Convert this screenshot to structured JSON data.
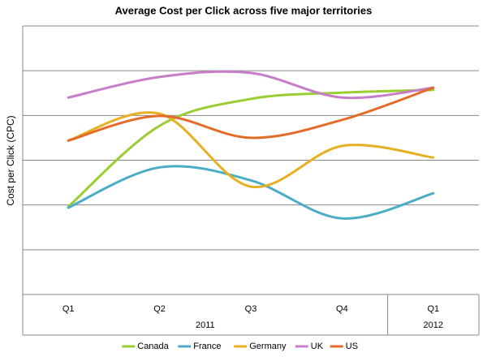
{
  "chart_data": {
    "type": "line",
    "title": "Average Cost per Click across five major territories",
    "y_label": "Cost per Click (CPC)",
    "categories": [
      "Q1",
      "Q2",
      "Q3",
      "Q4",
      "Q1"
    ],
    "category_groups": [
      {
        "label": "2011",
        "span": 4
      },
      {
        "label": "2012",
        "span": 1
      }
    ],
    "ylim": [
      0,
      6
    ],
    "yticks": [
      0,
      1,
      2,
      3,
      4,
      5,
      6
    ],
    "ytick_labels": false,
    "grid": true,
    "smooth": true,
    "legend": "bottom",
    "series": [
      {
        "name": "Canada",
        "color": "#9acd32",
        "values": [
          1.96,
          3.77,
          4.37,
          4.51,
          4.57
        ]
      },
      {
        "name": "France",
        "color": "#4bacc6",
        "values": [
          1.94,
          2.84,
          2.55,
          1.7,
          2.26
        ]
      },
      {
        "name": "Germany",
        "color": "#e5b022",
        "values": [
          3.44,
          4.04,
          2.41,
          3.32,
          3.06
        ]
      },
      {
        "name": "UK",
        "color": "#c77dc8",
        "values": [
          4.4,
          4.86,
          4.95,
          4.4,
          4.62
        ]
      },
      {
        "name": "US",
        "color": "#e46c2a",
        "values": [
          3.44,
          3.99,
          3.5,
          3.9,
          4.62
        ]
      }
    ]
  }
}
